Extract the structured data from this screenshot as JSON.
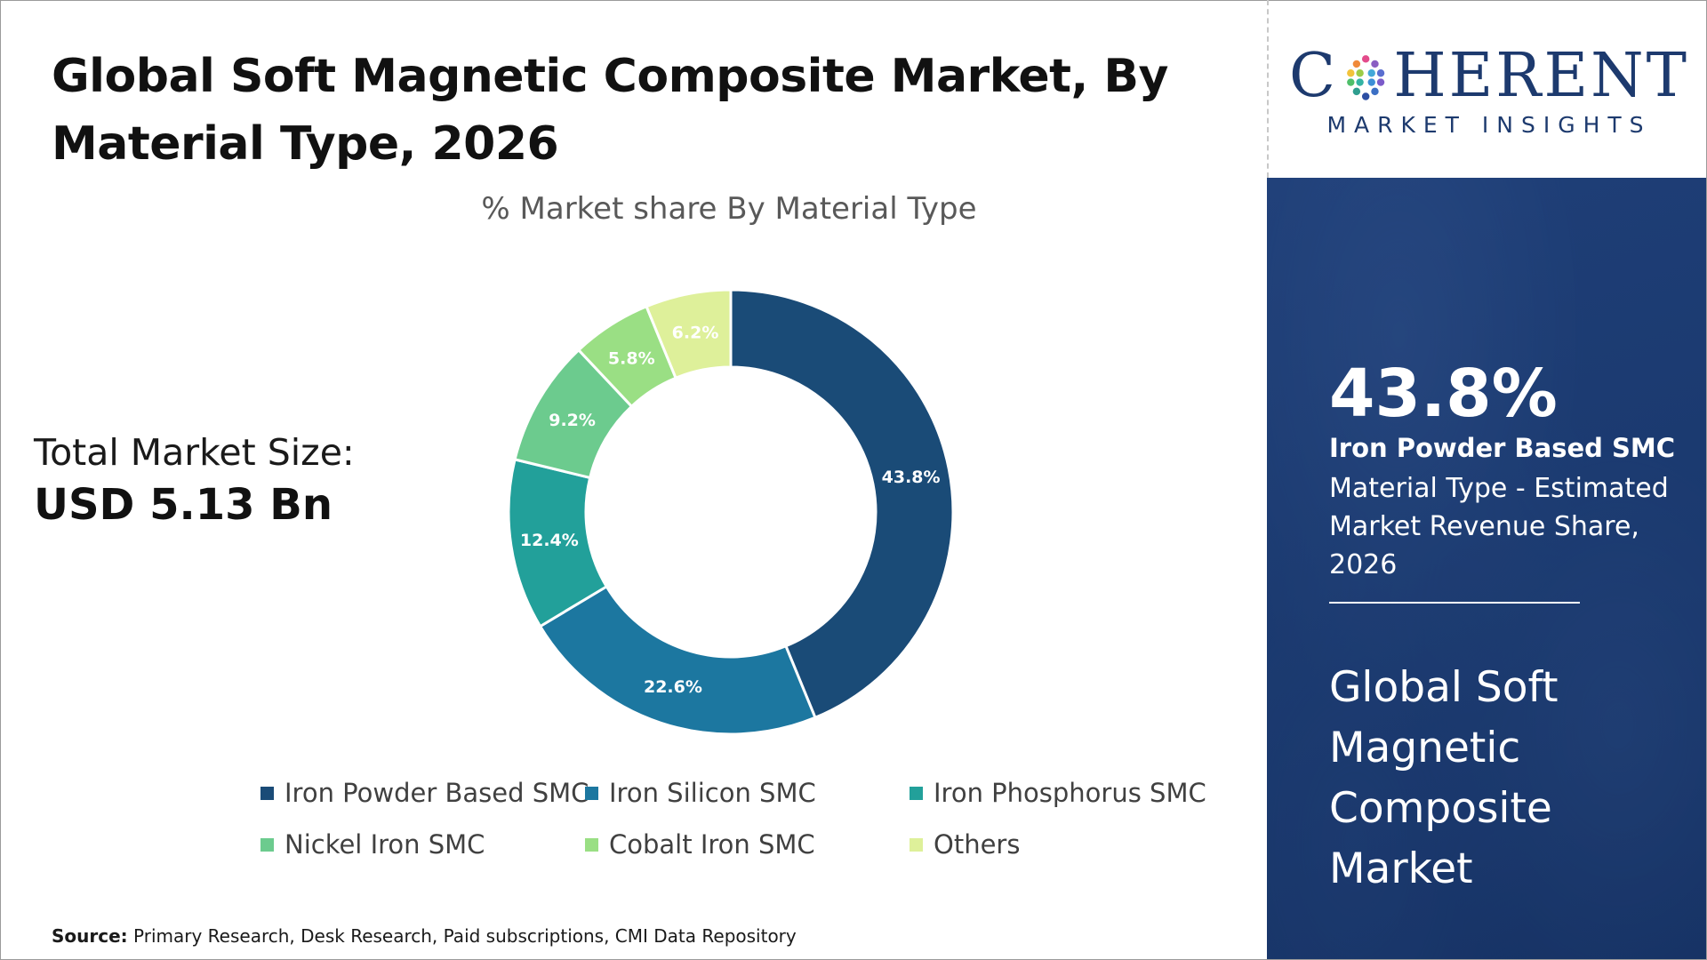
{
  "header": {
    "title": "Global Soft Magnetic Composite Market, By Material Type, 2026"
  },
  "summary": {
    "total_label": "Total Market Size:",
    "total_value": "USD 5.13 Bn"
  },
  "chart_data": {
    "type": "pie",
    "donut": true,
    "subtitle": "% Market share By Material Type",
    "slices": [
      {
        "label": "Iron Powder Based SMC",
        "value": 43.8,
        "display": "43.8%",
        "color": "#1a4b77"
      },
      {
        "label": "Iron Silicon SMC",
        "value": 22.6,
        "display": "22.6%",
        "color": "#1c77a0"
      },
      {
        "label": "Iron Phosphorus SMC",
        "value": 12.4,
        "display": "12.4%",
        "color": "#22a09a"
      },
      {
        "label": "Nickel Iron SMC",
        "value": 9.2,
        "display": "9.2%",
        "color": "#6ccb8e"
      },
      {
        "label": "Cobalt Iron SMC",
        "value": 5.8,
        "display": "5.8%",
        "color": "#9adf84"
      },
      {
        "label": "Others",
        "value": 6.2,
        "display": "6.2%",
        "color": "#def09a"
      }
    ],
    "legend_position": "bottom"
  },
  "source": {
    "label": "Source:",
    "text": "Primary Research, Desk Research, Paid subscriptions, CMI Data Repository"
  },
  "brand": {
    "logo_left": "C",
    "logo_right": "HERENT",
    "logo_sub": "MARKET INSIGHTS"
  },
  "panel": {
    "highlight_value": "43.8%",
    "highlight_segment": "Iron Powder Based SMC",
    "highlight_desc": "Material Type - Estimated Market Revenue Share, 2026",
    "market_title": "Global Soft Magnetic Composite Market"
  }
}
